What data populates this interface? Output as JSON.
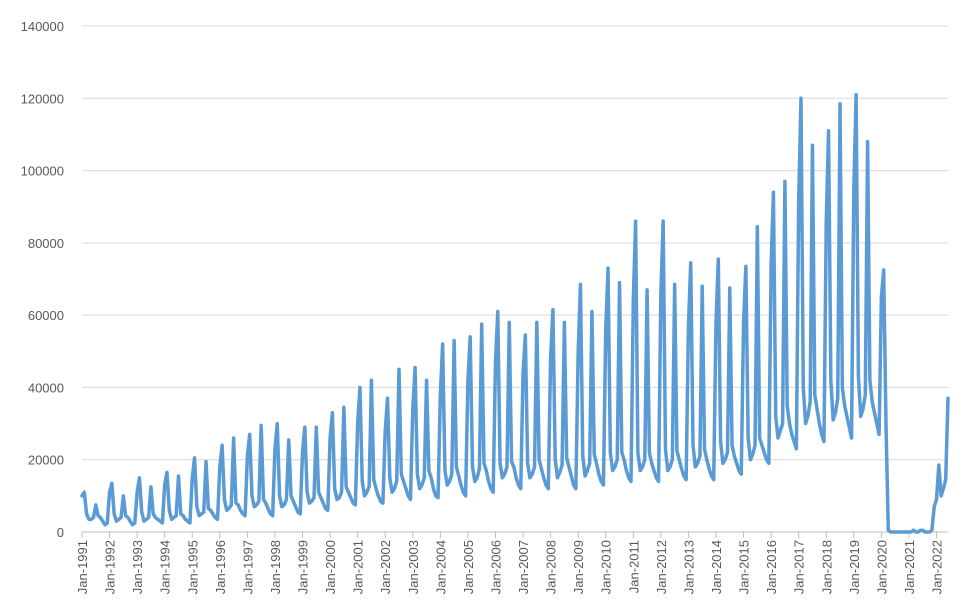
{
  "chart_data": {
    "type": "line",
    "title": "",
    "xlabel": "",
    "ylabel": "",
    "ylim": [
      0,
      140000
    ],
    "yticks": [
      0,
      20000,
      40000,
      60000,
      80000,
      100000,
      120000,
      140000
    ],
    "ytick_labels": [
      "0",
      "20000",
      "40000",
      "60000",
      "80000",
      "100000",
      "120000",
      "140000"
    ],
    "xtick_labels": [
      "Jan-1991",
      "Jan-1992",
      "Jan-1993",
      "Jan-1994",
      "Jan-1995",
      "Jan-1996",
      "Jan-1997",
      "Jan-1998",
      "Jan-1999",
      "Jan-2000",
      "Jan-2001",
      "Jan-2002",
      "Jan-2003",
      "Jan-2004",
      "Jan-2005",
      "Jan-2006",
      "Jan-2007",
      "Jan-2008",
      "Jan-2009",
      "Jan-2010",
      "Jan-2011",
      "Jan-2012",
      "Jan-2013",
      "Jan-2014",
      "Jan-2015",
      "Jan-2016",
      "Jan-2017",
      "Jan-2018",
      "Jan-2019",
      "Jan-2020",
      "Jan-2021",
      "Jan-2022"
    ],
    "grid": true,
    "legend": "none",
    "color": "#5B9BD5",
    "x_start": "Jan-1991",
    "x_end": "Jun-2022",
    "series": [
      {
        "years": [
          {
            "year": 1991,
            "values": [
              10000,
              11000,
              5000,
              3500,
              3500,
              4000,
              7500,
              4500,
              4000,
              3000,
              2000,
              2500
            ]
          },
          {
            "year": 1992,
            "values": [
              11000,
              13500,
              5000,
              3000,
              3500,
              4000,
              10000,
              4500,
              4000,
              3000,
              2000,
              2500
            ]
          },
          {
            "year": 1993,
            "values": [
              11000,
              15000,
              5500,
              3000,
              3500,
              4000,
              12500,
              5000,
              4000,
              3500,
              3000,
              2500
            ]
          },
          {
            "year": 1994,
            "values": [
              13000,
              16500,
              6000,
              3500,
              4000,
              4500,
              15500,
              5000,
              4500,
              3500,
              3000,
              2500
            ]
          },
          {
            "year": 1995,
            "values": [
              15000,
              20500,
              7000,
              4500,
              5000,
              5500,
              19500,
              6500,
              6000,
              5000,
              4000,
              3500
            ]
          },
          {
            "year": 1996,
            "values": [
              18000,
              24000,
              9000,
              6000,
              6500,
              7500,
              26000,
              8000,
              7500,
              6000,
              5000,
              4500
            ]
          },
          {
            "year": 1997,
            "values": [
              21000,
              27000,
              10000,
              7000,
              7500,
              8500,
              29500,
              9000,
              8000,
              6500,
              5000,
              4500
            ]
          },
          {
            "year": 1998,
            "values": [
              23000,
              30000,
              10000,
              7000,
              7500,
              9000,
              25500,
              10000,
              8500,
              7000,
              5500,
              5000
            ]
          },
          {
            "year": 1999,
            "values": [
              22000,
              29000,
              11000,
              8000,
              8500,
              9500,
              29000,
              11000,
              9500,
              8000,
              6500,
              6000
            ]
          },
          {
            "year": 2000,
            "values": [
              26000,
              33000,
              12000,
              9000,
              9500,
              11000,
              34500,
              12500,
              11000,
              9500,
              8000,
              7500
            ]
          },
          {
            "year": 2001,
            "values": [
              30000,
              40000,
              14000,
              10000,
              11000,
              12500,
              42000,
              14500,
              12000,
              10000,
              8500,
              8000
            ]
          },
          {
            "year": 2002,
            "values": [
              28000,
              37000,
              15000,
              11000,
              12000,
              14000,
              45000,
              16000,
              14000,
              12000,
              10000,
              9000
            ]
          },
          {
            "year": 2003,
            "values": [
              34000,
              45500,
              16000,
              12000,
              13000,
              15000,
              42000,
              17000,
              15000,
              12000,
              10000,
              9500
            ]
          },
          {
            "year": 2004,
            "values": [
              38000,
              52000,
              17000,
              13000,
              14000,
              16000,
              53000,
              18000,
              15500,
              13000,
              11000,
              10000
            ]
          },
          {
            "year": 2005,
            "values": [
              42000,
              54000,
              18000,
              14000,
              15000,
              17500,
              57500,
              19000,
              17000,
              14000,
              12000,
              11000
            ]
          },
          {
            "year": 2006,
            "values": [
              47000,
              61000,
              19000,
              15000,
              16000,
              18000,
              58000,
              19500,
              18000,
              15000,
              13000,
              12000
            ]
          },
          {
            "year": 2007,
            "values": [
              44000,
              54500,
              19000,
              15000,
              16000,
              18000,
              58000,
              20000,
              17500,
              15000,
              13000,
              12000
            ]
          },
          {
            "year": 2008,
            "values": [
              48000,
              61500,
              20000,
              15000,
              16500,
              18500,
              58000,
              20500,
              18000,
              15500,
              13000,
              12000
            ]
          },
          {
            "year": 2009,
            "values": [
              50000,
              68500,
              21000,
              15500,
              17000,
              19000,
              61000,
              21500,
              19000,
              16000,
              14000,
              13000
            ]
          },
          {
            "year": 2010,
            "values": [
              56000,
              73000,
              22000,
              17000,
              18000,
              20000,
              69000,
              22000,
              20000,
              17000,
              15000,
              14000
            ]
          },
          {
            "year": 2011,
            "values": [
              64000,
              86000,
              22000,
              17000,
              18000,
              20000,
              67000,
              22000,
              19000,
              17000,
              15000,
              14000
            ]
          },
          {
            "year": 2012,
            "values": [
              66000,
              86000,
              23000,
              17000,
              18000,
              20000,
              68500,
              22500,
              20000,
              17500,
              15500,
              14500
            ]
          },
          {
            "year": 2013,
            "values": [
              57000,
              74500,
              24000,
              18000,
              19000,
              21000,
              68000,
              23000,
              20000,
              17500,
              15500,
              14500
            ]
          },
          {
            "year": 2014,
            "values": [
              58000,
              75500,
              25000,
              19000,
              20000,
              22000,
              67500,
              24000,
              21000,
              19000,
              17000,
              16000
            ]
          },
          {
            "year": 2015,
            "values": [
              58000,
              73500,
              26000,
              20000,
              21500,
              24000,
              84500,
              26000,
              24000,
              22000,
              20000,
              19000
            ]
          },
          {
            "year": 2016,
            "values": [
              74000,
              94000,
              32000,
              26000,
              28000,
              30000,
              97000,
              35000,
              30000,
              27000,
              25000,
              23000
            ]
          },
          {
            "year": 2017,
            "values": [
              92000,
              120000,
              40000,
              30000,
              32000,
              36000,
              107000,
              38000,
              34000,
              30000,
              27000,
              25000
            ]
          },
          {
            "year": 2018,
            "values": [
              86000,
              111000,
              42000,
              31000,
              33000,
              37000,
              118500,
              40000,
              35000,
              32000,
              29000,
              26000
            ]
          },
          {
            "year": 2019,
            "values": [
              95000,
              121000,
              43000,
              32000,
              34000,
              38000,
              108000,
              42000,
              36000,
              33000,
              30000,
              27000
            ]
          },
          {
            "year": 2020,
            "values": [
              65000,
              72500,
              30000,
              500,
              0,
              0,
              0,
              0,
              0,
              0,
              0,
              0
            ]
          },
          {
            "year": 2021,
            "values": [
              0,
              0,
              500,
              0,
              0,
              500,
              500,
              0,
              0,
              0,
              500,
              7000
            ]
          },
          {
            "year": 2022,
            "values": [
              9000,
              18500,
              10000,
              12000,
              14500,
              37000
            ]
          }
        ]
      }
    ]
  }
}
